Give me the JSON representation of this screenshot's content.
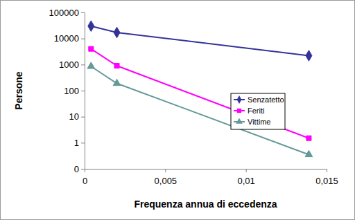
{
  "chart_data": {
    "type": "line",
    "x_label": "Frequenza annua di eccedenza",
    "y_label": "Persone",
    "x": [
      0.0004,
      0.002,
      0.0139
    ],
    "series": [
      {
        "name": "Senzatetto",
        "color": "#333399",
        "marker": "diamond",
        "values": [
          30000,
          17000,
          2200
        ]
      },
      {
        "name": "Feriti",
        "color": "#ff00ff",
        "marker": "square",
        "values": [
          4000,
          900,
          1.5
        ]
      },
      {
        "name": "Vittime",
        "color": "#669999",
        "marker": "triangle",
        "values": [
          850,
          190,
          0.35
        ]
      }
    ],
    "xlim": [
      0,
      0.015
    ],
    "xticks": [
      0,
      {
        "value": 0.005,
        "label": "0,005"
      },
      {
        "value": 0.01,
        "label": "0,01"
      },
      {
        "value": 0.015,
        "label": "0,015"
      }
    ],
    "ylim": [
      0.1,
      100000
    ],
    "yticks": [
      {
        "value": 0.1,
        "label": "0"
      },
      1,
      10,
      100,
      1000,
      10000,
      100000
    ],
    "log": "y",
    "grid": false,
    "legend": "right"
  }
}
